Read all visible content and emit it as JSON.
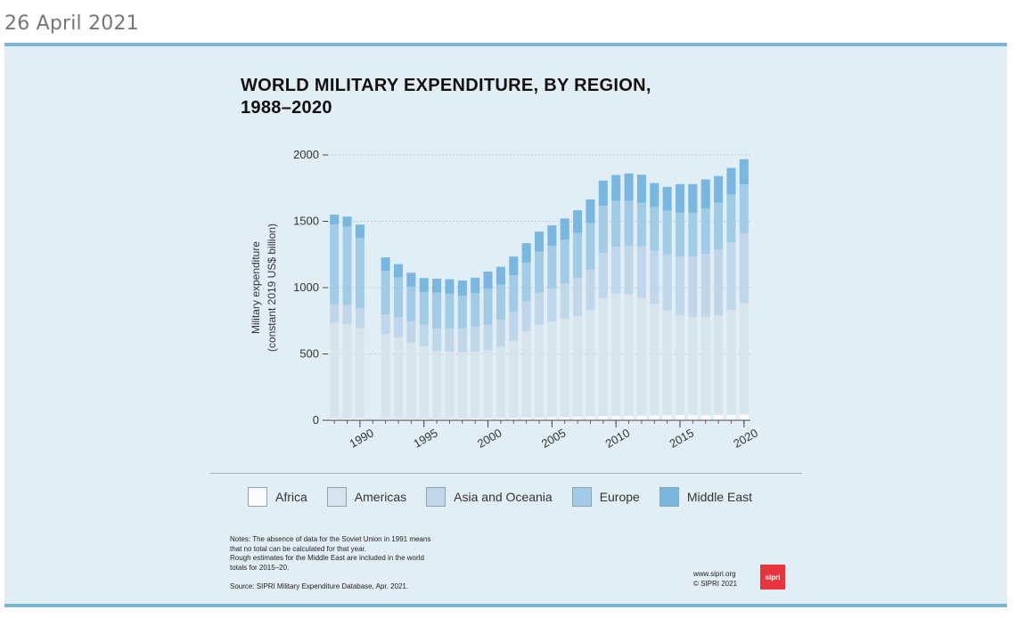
{
  "header": {
    "date": "26 April 2021"
  },
  "footer": {
    "notes": [
      "Notes: The absence of data for the Soviet Union in 1991 means",
      "that no total can be calculated for that year.",
      "Rough estimates for the Middle East are included in the world",
      "totals for 2015–20."
    ],
    "source": "Source: SIPRI Military Expenditure Database, Apr. 2021.",
    "credits": [
      "www.sipri.org",
      "© SIPRI 2021"
    ],
    "logo_text": "sipri"
  },
  "colors": {
    "Africa": "#f9fbfd",
    "Americas": "#d7e4ee",
    "Asia and Oceania": "#bfd7e8",
    "Europe": "#a2cbe6",
    "Middle East": "#78b7e0",
    "axis": "#444444"
  },
  "chart_data": {
    "type": "bar",
    "stacked": true,
    "title_lines": [
      "WORLD MILITARY EXPENDITURE, BY REGION,",
      "1988–2020"
    ],
    "ylabel_lines": [
      "Military expenditure",
      "(constant 2019 US$ billion)"
    ],
    "ylim": [
      0,
      2000
    ],
    "yticks": [
      0,
      500,
      1000,
      1500,
      2000
    ],
    "xtick_labels": [
      "1990",
      "1995",
      "2000",
      "2005",
      "2010",
      "2015",
      "2020"
    ],
    "xtick_years": [
      1990,
      1995,
      2000,
      2005,
      2010,
      2015,
      2020
    ],
    "years": [
      1988,
      1989,
      1990,
      1991,
      1992,
      1993,
      1994,
      1995,
      1996,
      1997,
      1998,
      1999,
      2000,
      2001,
      2002,
      2003,
      2004,
      2005,
      2006,
      2007,
      2008,
      2009,
      2010,
      2011,
      2012,
      2013,
      2014,
      2015,
      2016,
      2017,
      2018,
      2019,
      2020
    ],
    "legend": [
      "Africa",
      "Americas",
      "Asia and Oceania",
      "Europe",
      "Middle East"
    ],
    "series": [
      {
        "name": "Africa",
        "values": [
          15,
          15,
          15,
          null,
          13,
          12,
          12,
          12,
          12,
          13,
          14,
          15,
          16,
          17,
          19,
          20,
          22,
          24,
          26,
          28,
          30,
          32,
          34,
          35,
          36,
          38,
          39,
          40,
          40,
          40,
          41,
          42,
          43
        ]
      },
      {
        "name": "Americas",
        "values": [
          720,
          710,
          680,
          null,
          635,
          610,
          575,
          545,
          510,
          505,
          500,
          505,
          515,
          535,
          580,
          650,
          700,
          720,
          740,
          760,
          800,
          890,
          920,
          915,
          890,
          840,
          790,
          755,
          740,
          740,
          750,
          790,
          840
        ]
      },
      {
        "name": "Asia and Oceania",
        "values": [
          140,
          145,
          150,
          null,
          150,
          155,
          160,
          165,
          170,
          175,
          180,
          185,
          190,
          205,
          215,
          225,
          240,
          250,
          265,
          285,
          305,
          340,
          355,
          365,
          385,
          400,
          420,
          440,
          455,
          475,
          495,
          510,
          525
        ]
      },
      {
        "name": "Europe",
        "values": [
          600,
          590,
          530,
          null,
          330,
          300,
          260,
          245,
          270,
          260,
          245,
          255,
          270,
          265,
          280,
          295,
          310,
          320,
          330,
          340,
          350,
          355,
          345,
          340,
          330,
          330,
          330,
          330,
          330,
          340,
          355,
          360,
          370
        ]
      },
      {
        "name": "Middle East",
        "values": [
          75,
          75,
          100,
          null,
          100,
          100,
          105,
          105,
          105,
          110,
          115,
          115,
          130,
          135,
          140,
          145,
          150,
          155,
          160,
          170,
          180,
          190,
          195,
          205,
          210,
          180,
          180,
          215,
          215,
          220,
          200,
          200,
          190
        ]
      }
    ]
  }
}
